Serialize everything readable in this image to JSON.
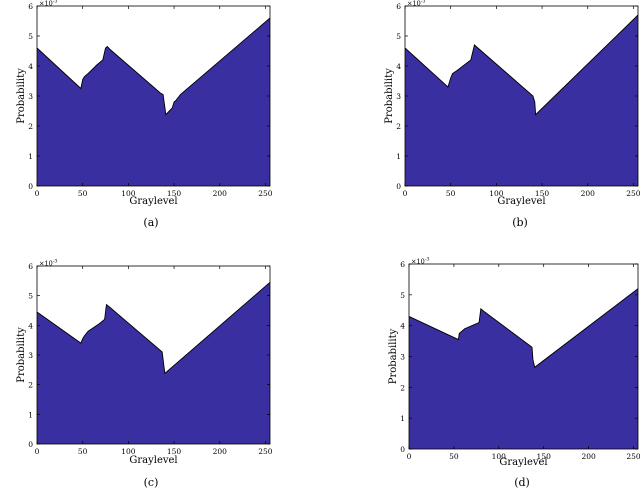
{
  "figure": {
    "fill_color": "#3a2fa0",
    "stroke_color": "#000000"
  },
  "chart_data": [
    {
      "type": "area",
      "caption": "(a)",
      "xlabel": "Graylevel",
      "ylabel": "Probability",
      "exponent_label": "×10",
      "exponent_power": "-3",
      "xlim": [
        0,
        255
      ],
      "ylim": [
        0,
        6
      ],
      "xticks": [
        0,
        50,
        100,
        150,
        200,
        250
      ],
      "yticks": [
        0,
        1,
        2,
        3,
        4,
        5,
        6
      ],
      "x": [
        0,
        48,
        50,
        52,
        56,
        66,
        72,
        75,
        77,
        80,
        135,
        138,
        141,
        148,
        150,
        152,
        157,
        255
      ],
      "y": [
        4.6,
        3.25,
        3.55,
        3.65,
        3.75,
        4.05,
        4.2,
        4.6,
        4.65,
        4.55,
        3.1,
        3.05,
        2.38,
        2.6,
        2.8,
        2.85,
        3.05,
        5.6
      ]
    },
    {
      "type": "area",
      "caption": "(b)",
      "xlabel": "Graylevel",
      "ylabel": "Probability",
      "exponent_label": "×10",
      "exponent_power": "-3",
      "xlim": [
        0,
        255
      ],
      "ylim": [
        0,
        6
      ],
      "xticks": [
        0,
        50,
        100,
        150,
        200,
        250
      ],
      "yticks": [
        0,
        1,
        2,
        3,
        4,
        5,
        6
      ],
      "x": [
        0,
        47,
        50,
        52,
        57,
        72,
        76,
        140,
        142,
        143,
        255
      ],
      "y": [
        4.6,
        3.3,
        3.6,
        3.75,
        3.85,
        4.2,
        4.7,
        3.0,
        2.8,
        2.38,
        5.7
      ]
    },
    {
      "type": "area",
      "caption": "(c)",
      "xlabel": "Graylevel",
      "ylabel": "Probability",
      "exponent_label": "×10",
      "exponent_power": "-3",
      "xlim": [
        0,
        255
      ],
      "ylim": [
        0,
        6
      ],
      "xticks": [
        0,
        50,
        100,
        150,
        200,
        250
      ],
      "yticks": [
        0,
        1,
        2,
        3,
        4,
        5,
        6
      ],
      "x": [
        0,
        48,
        50,
        52,
        56,
        68,
        74,
        76,
        80,
        137,
        139,
        140,
        255
      ],
      "y": [
        4.45,
        3.4,
        3.55,
        3.65,
        3.8,
        4.05,
        4.2,
        4.7,
        4.6,
        3.1,
        2.6,
        2.38,
        5.45
      ]
    },
    {
      "type": "area",
      "caption": "(d)",
      "xlabel": "Graylevel",
      "ylabel": "Probability",
      "exponent_label": "×10",
      "exponent_power": "-3",
      "xlim": [
        0,
        255
      ],
      "ylim": [
        0,
        6
      ],
      "xticks": [
        0,
        50,
        100,
        150,
        200,
        250
      ],
      "yticks": [
        0,
        1,
        2,
        3,
        4,
        5,
        6
      ],
      "x": [
        0,
        55,
        56,
        58,
        62,
        70,
        78,
        80,
        84,
        137,
        138,
        140,
        255
      ],
      "y": [
        4.3,
        3.55,
        3.75,
        3.8,
        3.9,
        4.0,
        4.1,
        4.55,
        4.45,
        3.3,
        2.9,
        2.65,
        5.2
      ]
    }
  ]
}
